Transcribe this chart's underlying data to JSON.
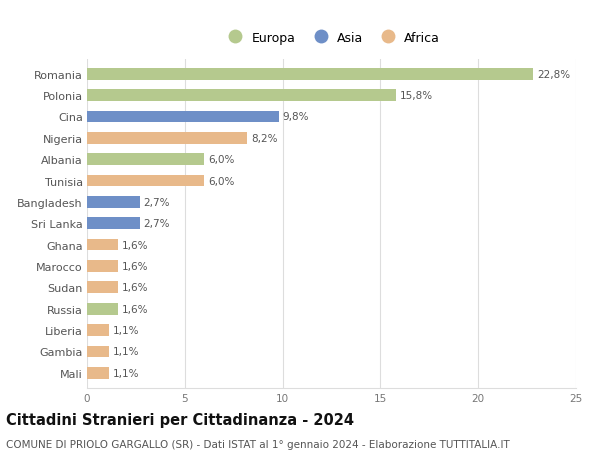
{
  "countries": [
    "Romania",
    "Polonia",
    "Cina",
    "Nigeria",
    "Albania",
    "Tunisia",
    "Bangladesh",
    "Sri Lanka",
    "Ghana",
    "Marocco",
    "Sudan",
    "Russia",
    "Liberia",
    "Gambia",
    "Mali"
  ],
  "values": [
    22.8,
    15.8,
    9.8,
    8.2,
    6.0,
    6.0,
    2.7,
    2.7,
    1.6,
    1.6,
    1.6,
    1.6,
    1.1,
    1.1,
    1.1
  ],
  "labels": [
    "22,8%",
    "15,8%",
    "9,8%",
    "8,2%",
    "6,0%",
    "6,0%",
    "2,7%",
    "2,7%",
    "1,6%",
    "1,6%",
    "1,6%",
    "1,6%",
    "1,1%",
    "1,1%",
    "1,1%"
  ],
  "continent": [
    "Europa",
    "Europa",
    "Asia",
    "Africa",
    "Europa",
    "Africa",
    "Asia",
    "Asia",
    "Africa",
    "Africa",
    "Africa",
    "Europa",
    "Africa",
    "Africa",
    "Africa"
  ],
  "colors": {
    "Europa": "#b5c98e",
    "Asia": "#6e8fc7",
    "Africa": "#e8b98a"
  },
  "xlim": [
    0,
    25
  ],
  "xticks": [
    0,
    5,
    10,
    15,
    20,
    25
  ],
  "title": "Cittadini Stranieri per Cittadinanza - 2024",
  "subtitle": "COMUNE DI PRIOLO GARGALLO (SR) - Dati ISTAT al 1° gennaio 2024 - Elaborazione TUTTITALIA.IT",
  "background_color": "#ffffff",
  "grid_color": "#dddddd",
  "bar_height": 0.55,
  "label_fontsize": 7.5,
  "ytick_fontsize": 8,
  "title_fontsize": 10.5,
  "subtitle_fontsize": 7.5
}
